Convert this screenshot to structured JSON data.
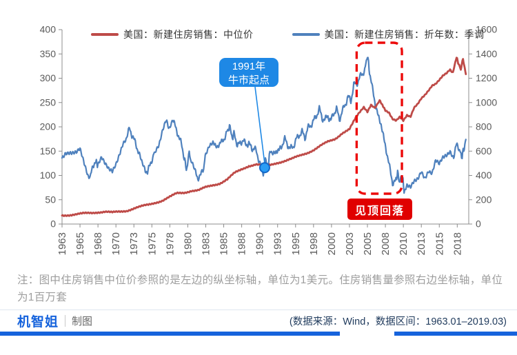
{
  "chart_data": {
    "type": "line",
    "legend_position": "top",
    "x_axis": {
      "start_year": 1963,
      "end_year": 2019.25,
      "label_interval_years": 2.5,
      "label_years": [
        1963,
        1965,
        1968,
        1970,
        1973,
        1975,
        1978,
        1980,
        1983,
        1985,
        1988,
        1990,
        1993,
        1995,
        1998,
        2000,
        2003,
        2005,
        2008,
        2010,
        2013,
        2015,
        2018
      ]
    },
    "left_axis": {
      "range": [
        0,
        400
      ],
      "ticks": [
        400,
        350,
        300,
        250,
        200,
        150,
        100,
        50,
        0
      ],
      "unit_note": "1美元"
    },
    "right_axis": {
      "range": [
        0,
        1600
      ],
      "ticks": [
        1600,
        1400,
        1200,
        1000,
        800,
        600,
        400,
        200,
        0
      ],
      "unit_note": "1百万套"
    },
    "series": [
      {
        "name": "美国：新建住房销售：中位价",
        "axis": "left",
        "color": "#be4b48",
        "points": [
          [
            1963,
            17.9
          ],
          [
            1964,
            18.9
          ],
          [
            1965,
            20
          ],
          [
            1966,
            21.4
          ],
          [
            1967,
            22.7
          ],
          [
            1968,
            24.7
          ],
          [
            1969,
            25.6
          ],
          [
            1970,
            23.4
          ],
          [
            1971,
            25.2
          ],
          [
            1972,
            27.6
          ],
          [
            1973,
            32.5
          ],
          [
            1974,
            35.9
          ],
          [
            1975,
            39.3
          ],
          [
            1976,
            44.2
          ],
          [
            1977,
            48.8
          ],
          [
            1978,
            55.7
          ],
          [
            1979,
            62.9
          ],
          [
            1980,
            64.6
          ],
          [
            1981,
            68.9
          ],
          [
            1982,
            69.3
          ],
          [
            1983,
            75.3
          ],
          [
            1984,
            79.9
          ],
          [
            1985,
            84.3
          ],
          [
            1986,
            92
          ],
          [
            1987,
            104.5
          ],
          [
            1988,
            112.5
          ],
          [
            1989,
            120
          ],
          [
            1990,
            122.9
          ],
          [
            1991,
            120
          ],
          [
            1992,
            121.5
          ],
          [
            1993,
            126.5
          ],
          [
            1994,
            130
          ],
          [
            1995,
            133.9
          ],
          [
            1996,
            140
          ],
          [
            1997,
            146
          ],
          [
            1998,
            152.5
          ],
          [
            1999,
            161
          ],
          [
            2000,
            169
          ],
          [
            2001,
            175.2
          ],
          [
            2002,
            187.6
          ],
          [
            2003,
            195
          ],
          [
            2004,
            221
          ],
          [
            2005,
            240.9
          ],
          [
            2005.5,
            232
          ],
          [
            2006,
            246.5
          ],
          [
            2006.5,
            240
          ],
          [
            2007.2,
            253
          ],
          [
            2007.6,
            246
          ],
          [
            2008,
            232
          ],
          [
            2008.5,
            228
          ],
          [
            2009,
            216
          ],
          [
            2009.5,
            214
          ],
          [
            2010,
            222
          ],
          [
            2010.5,
            214
          ],
          [
            2011,
            224
          ],
          [
            2011.5,
            220
          ],
          [
            2012,
            238
          ],
          [
            2012.5,
            246
          ],
          [
            2013,
            258
          ],
          [
            2013.5,
            266
          ],
          [
            2014,
            276
          ],
          [
            2014.5,
            286
          ],
          [
            2015,
            289
          ],
          [
            2015.5,
            296
          ],
          [
            2016,
            304
          ],
          [
            2016.5,
            309
          ],
          [
            2017,
            317
          ],
          [
            2017.4,
            313
          ],
          [
            2017.9,
            343
          ],
          [
            2018.2,
            329
          ],
          [
            2018.5,
            318
          ],
          [
            2018.8,
            341
          ],
          [
            2019.2,
            308
          ]
        ]
      },
      {
        "name": "美国：新建住房销售：折年数：季调",
        "axis": "right",
        "color": "#4f81bd",
        "points": [
          [
            1963,
            560
          ],
          [
            1963.5,
            590
          ],
          [
            1964,
            580
          ],
          [
            1964.5,
            570
          ],
          [
            1965,
            575
          ],
          [
            1965.5,
            610
          ],
          [
            1966,
            520
          ],
          [
            1966.5,
            430
          ],
          [
            1966.9,
            370
          ],
          [
            1967.3,
            490
          ],
          [
            1967.7,
            510
          ],
          [
            1968,
            490
          ],
          [
            1968.5,
            540
          ],
          [
            1969,
            480
          ],
          [
            1969.5,
            440
          ],
          [
            1970,
            430
          ],
          [
            1970.5,
            500
          ],
          [
            1971,
            590
          ],
          [
            1971.5,
            680
          ],
          [
            1972,
            710
          ],
          [
            1972.4,
            790
          ],
          [
            1972.8,
            720
          ],
          [
            1973.2,
            670
          ],
          [
            1973.6,
            600
          ],
          [
            1974,
            520
          ],
          [
            1974.5,
            460
          ],
          [
            1974.9,
            420
          ],
          [
            1975.3,
            500
          ],
          [
            1975.7,
            560
          ],
          [
            1976,
            610
          ],
          [
            1976.5,
            650
          ],
          [
            1977,
            760
          ],
          [
            1977.5,
            840
          ],
          [
            1977.9,
            800
          ],
          [
            1978.4,
            870
          ],
          [
            1978.8,
            790
          ],
          [
            1979.2,
            730
          ],
          [
            1979.6,
            660
          ],
          [
            1980,
            550
          ],
          [
            1980.3,
            450
          ],
          [
            1980.7,
            580
          ],
          [
            1981,
            510
          ],
          [
            1981.5,
            430
          ],
          [
            1981.9,
            380
          ],
          [
            1982.3,
            400
          ],
          [
            1982.7,
            460
          ],
          [
            1983,
            580
          ],
          [
            1983.5,
            660
          ],
          [
            1984,
            690
          ],
          [
            1984.4,
            620
          ],
          [
            1984.8,
            660
          ],
          [
            1985.2,
            670
          ],
          [
            1985.6,
            710
          ],
          [
            1986,
            760
          ],
          [
            1986.3,
            800
          ],
          [
            1986.7,
            710
          ],
          [
            1987,
            750
          ],
          [
            1987.4,
            640
          ],
          [
            1987.8,
            670
          ],
          [
            1988.2,
            690
          ],
          [
            1988.6,
            650
          ],
          [
            1989,
            670
          ],
          [
            1989.4,
            610
          ],
          [
            1989.8,
            640
          ],
          [
            1990.2,
            550
          ],
          [
            1990.6,
            510
          ],
          [
            1991,
            400
          ],
          [
            1991.3,
            520
          ],
          [
            1991.7,
            490
          ],
          [
            1992,
            620
          ],
          [
            1992.4,
            560
          ],
          [
            1992.8,
            610
          ],
          [
            1993.2,
            600
          ],
          [
            1993.6,
            650
          ],
          [
            1994,
            700
          ],
          [
            1994.4,
            650
          ],
          [
            1994.8,
            620
          ],
          [
            1995.2,
            640
          ],
          [
            1995.6,
            700
          ],
          [
            1996,
            730
          ],
          [
            1996.4,
            760
          ],
          [
            1996.8,
            710
          ],
          [
            1997.2,
            790
          ],
          [
            1997.6,
            810
          ],
          [
            1998,
            850
          ],
          [
            1998.4,
            890
          ],
          [
            1998.8,
            950
          ],
          [
            1999.2,
            870
          ],
          [
            1999.6,
            860
          ],
          [
            2000,
            890
          ],
          [
            2000.4,
            850
          ],
          [
            2000.8,
            910
          ],
          [
            2001.2,
            950
          ],
          [
            2001.6,
            860
          ],
          [
            2002,
            930
          ],
          [
            2002.4,
            980
          ],
          [
            2002.8,
            1050
          ],
          [
            2003.2,
            1010
          ],
          [
            2003.6,
            1150
          ],
          [
            2004,
            1150
          ],
          [
            2004.4,
            1210
          ],
          [
            2004.8,
            1230
          ],
          [
            2005.2,
            1290
          ],
          [
            2005.5,
            1390
          ],
          [
            2005.8,
            1250
          ],
          [
            2006.2,
            1110
          ],
          [
            2006.6,
            990
          ],
          [
            2007,
            880
          ],
          [
            2007.4,
            830
          ],
          [
            2007.8,
            690
          ],
          [
            2008.2,
            590
          ],
          [
            2008.6,
            460
          ],
          [
            2009,
            340
          ],
          [
            2009.4,
            350
          ],
          [
            2009.7,
            420
          ],
          [
            2010,
            340
          ],
          [
            2010.3,
            420
          ],
          [
            2010.6,
            280
          ],
          [
            2011,
            300
          ],
          [
            2011.5,
            290
          ],
          [
            2012,
            350
          ],
          [
            2012.5,
            380
          ],
          [
            2013,
            450
          ],
          [
            2013.5,
            390
          ],
          [
            2014,
            440
          ],
          [
            2014.5,
            410
          ],
          [
            2015,
            510
          ],
          [
            2015.5,
            480
          ],
          [
            2016,
            540
          ],
          [
            2016.5,
            570
          ],
          [
            2017,
            610
          ],
          [
            2017.5,
            560
          ],
          [
            2017.9,
            650
          ],
          [
            2018.3,
            620
          ],
          [
            2018.6,
            550
          ],
          [
            2018.9,
            610
          ],
          [
            2019.2,
            690
          ]
        ]
      }
    ],
    "annotations": {
      "callout": {
        "lines": [
          "1991年",
          "牛市起点"
        ],
        "target": {
          "year": 1991.2,
          "left_value": 116
        },
        "color": "#1e88e5"
      },
      "highlight_box": {
        "from_year": 2004.0,
        "to_year": 2010.3,
        "color": "#ec0a0a"
      },
      "alert_label": {
        "text": "见顶回落",
        "bg": "#e00000"
      }
    }
  },
  "note": "注：图中住房销售中位价参照的是左边的纵坐标轴，单位为1美元。住房销售量参照右边坐标轴，单位为1百万套",
  "footer": {
    "logo": "机智姐",
    "logo_suffix": "制图",
    "source": "(数据来源：Wind，数据区间：1963.01–2019.03)",
    "accent_color": "#1663dc"
  }
}
